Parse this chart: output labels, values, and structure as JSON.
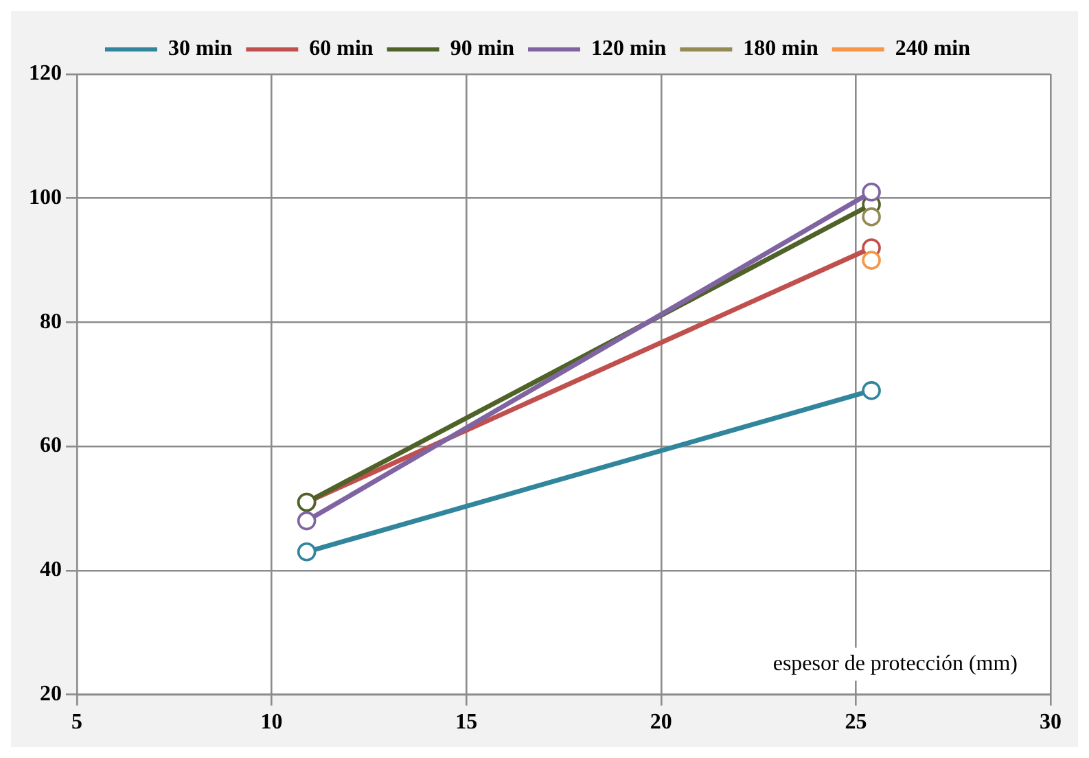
{
  "chart_data": {
    "type": "line",
    "xlabel": "espesor de protección (mm)",
    "x": [
      10.9,
      25.4
    ],
    "series": [
      {
        "name": "30 min",
        "color": "#31859c",
        "values": [
          43,
          69
        ]
      },
      {
        "name": "60 min",
        "color": "#c0504d",
        "values": [
          51,
          92
        ]
      },
      {
        "name": "90 min",
        "color": "#4f6228",
        "values": [
          51,
          99
        ]
      },
      {
        "name": "120 min",
        "color": "#8064a2",
        "values": [
          48,
          101
        ]
      },
      {
        "name": "180 min",
        "color": "#948a54",
        "values": [
          null,
          97
        ]
      },
      {
        "name": "240 min",
        "color": "#f79646",
        "values": [
          null,
          90
        ]
      }
    ],
    "xlim": [
      5,
      30
    ],
    "xticks": [
      5,
      10,
      15,
      20,
      25,
      30
    ],
    "ylim": [
      20,
      120
    ],
    "yticks": [
      20,
      40,
      60,
      80,
      100,
      120
    ],
    "grid": true,
    "legend": "top",
    "marker": "circle",
    "line_style": "solid"
  }
}
